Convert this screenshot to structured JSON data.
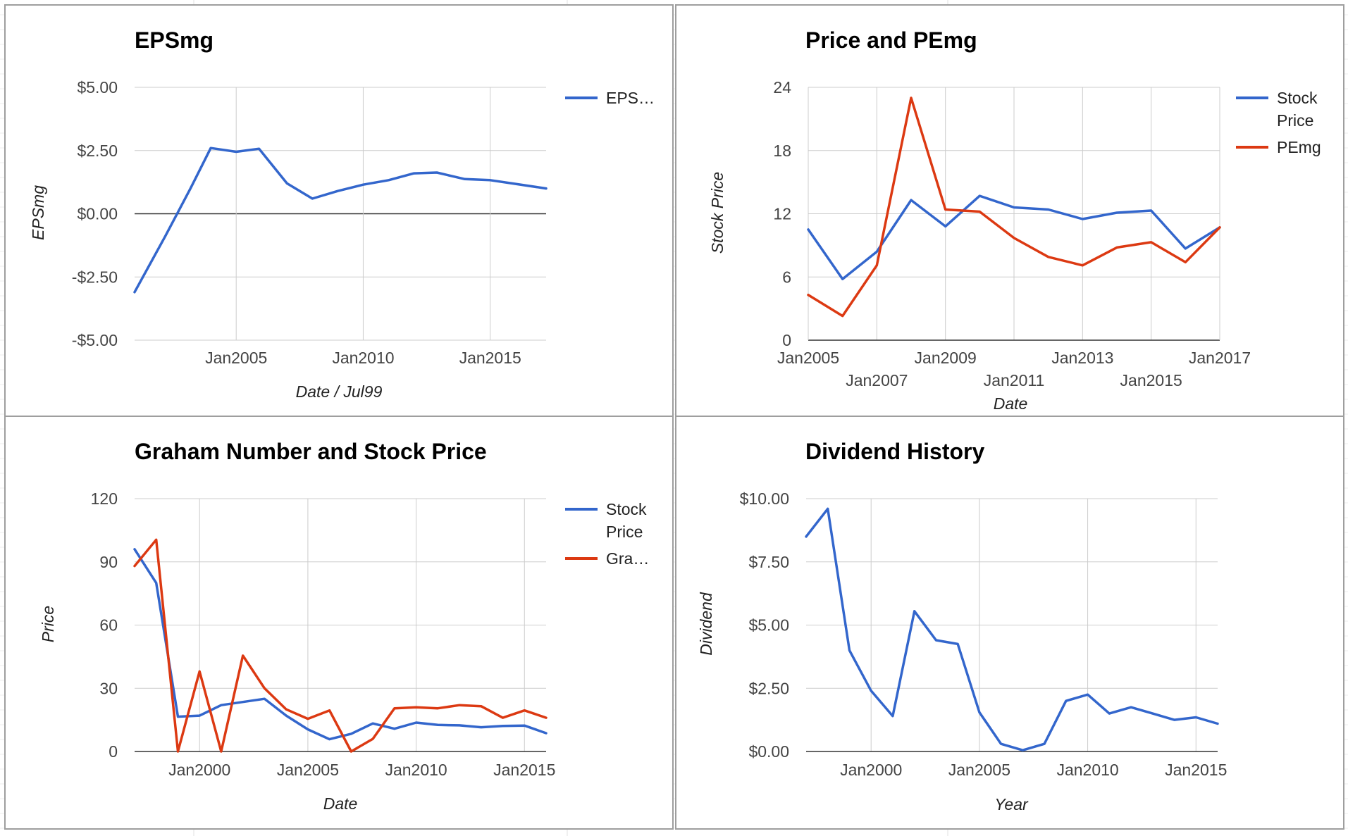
{
  "colors": {
    "blue": "#3366cc",
    "red": "#dc3912",
    "grid": "#cccccc",
    "zero": "#333333"
  },
  "chart_data": [
    {
      "type": "line",
      "title": "EPSmg",
      "xlabel": "Date / Jul99",
      "ylabel": "EPSmg",
      "x_ticks": [
        "Jan2005",
        "Jan2010",
        "Jan2015"
      ],
      "y_ticks": [
        "$5.00",
        "$2.50",
        "$0.00",
        "-$2.50",
        "-$5.00"
      ],
      "xlim": [
        2001.0,
        2017.2
      ],
      "ylim": [
        -5,
        5
      ],
      "grid": true,
      "legend_position": "right",
      "series": [
        {
          "name": "EPS…",
          "color": "#3366cc",
          "points": [
            [
              2001.0,
              -3.1
            ],
            [
              2002.2,
              -0.9
            ],
            [
              2003.2,
              1.0
            ],
            [
              2004.0,
              2.6
            ],
            [
              2005.0,
              2.45
            ],
            [
              2005.9,
              2.57
            ],
            [
              2007.0,
              1.2
            ],
            [
              2008.0,
              0.6
            ],
            [
              2009.0,
              0.9
            ],
            [
              2010.0,
              1.15
            ],
            [
              2011.0,
              1.33
            ],
            [
              2012.0,
              1.6
            ],
            [
              2012.9,
              1.63
            ],
            [
              2014.0,
              1.37
            ],
            [
              2015.0,
              1.33
            ],
            [
              2016.0,
              1.18
            ],
            [
              2017.2,
              1.0
            ]
          ]
        }
      ]
    },
    {
      "type": "line",
      "title": "Price and PEmg",
      "xlabel": "Date",
      "ylabel": "Stock Price",
      "x_ticks_row1": [
        "Jan2005",
        "Jan2009",
        "Jan2013",
        "Jan2017"
      ],
      "x_ticks_row2": [
        "Jan2007",
        "Jan2011",
        "Jan2015"
      ],
      "y_ticks": [
        "24",
        "18",
        "12",
        "6",
        "0"
      ],
      "xlim": [
        2005,
        2017
      ],
      "ylim": [
        0,
        24
      ],
      "grid": true,
      "legend_position": "right",
      "series": [
        {
          "name": "Stock Price",
          "color": "#3366cc",
          "points": [
            [
              2005,
              10.5
            ],
            [
              2006,
              5.8
            ],
            [
              2007,
              8.4
            ],
            [
              2008,
              13.3
            ],
            [
              2009,
              10.8
            ],
            [
              2010,
              13.7
            ],
            [
              2011,
              12.6
            ],
            [
              2012,
              12.4
            ],
            [
              2013,
              11.5
            ],
            [
              2014,
              12.1
            ],
            [
              2015,
              12.3
            ],
            [
              2016,
              8.7
            ],
            [
              2017,
              10.7
            ]
          ]
        },
        {
          "name": "PEmg",
          "color": "#dc3912",
          "points": [
            [
              2005,
              4.3
            ],
            [
              2006,
              2.3
            ],
            [
              2007,
              7.1
            ],
            [
              2008,
              23.0
            ],
            [
              2009,
              12.4
            ],
            [
              2010,
              12.2
            ],
            [
              2011,
              9.7
            ],
            [
              2012,
              7.9
            ],
            [
              2013,
              7.1
            ],
            [
              2014,
              8.8
            ],
            [
              2015,
              9.3
            ],
            [
              2016,
              7.4
            ],
            [
              2017,
              10.7
            ]
          ]
        }
      ]
    },
    {
      "type": "line",
      "title": "Graham Number and Stock Price",
      "xlabel": "Date",
      "ylabel": "Price",
      "x_ticks": [
        "Jan2000",
        "Jan2005",
        "Jan2010",
        "Jan2015"
      ],
      "y_ticks": [
        "120",
        "90",
        "60",
        "30",
        "0"
      ],
      "xlim": [
        1997,
        2016
      ],
      "ylim": [
        0,
        120
      ],
      "grid": true,
      "legend_position": "right",
      "series": [
        {
          "name": "Stock Price",
          "color": "#3366cc",
          "points": [
            [
              1997,
              96
            ],
            [
              1998,
              80
            ],
            [
              1999,
              16.5
            ],
            [
              2000,
              17
            ],
            [
              2001,
              22
            ],
            [
              2002,
              23.5
            ],
            [
              2003,
              25
            ],
            [
              2004,
              17
            ],
            [
              2005,
              10.5
            ],
            [
              2006,
              5.8
            ],
            [
              2007,
              8.4
            ],
            [
              2008,
              13.3
            ],
            [
              2009,
              10.8
            ],
            [
              2010,
              13.7
            ],
            [
              2011,
              12.6
            ],
            [
              2012,
              12.4
            ],
            [
              2013,
              11.5
            ],
            [
              2014,
              12.1
            ],
            [
              2015,
              12.3
            ],
            [
              2016,
              8.7
            ]
          ]
        },
        {
          "name": "Gra…",
          "color": "#dc3912",
          "points": [
            [
              1997,
              88
            ],
            [
              1998,
              100.5
            ],
            [
              1999,
              0
            ],
            [
              2000,
              38
            ],
            [
              2001,
              0
            ],
            [
              2002,
              45.5
            ],
            [
              2003,
              30
            ],
            [
              2004,
              20
            ],
            [
              2005,
              15.5
            ],
            [
              2006,
              19.5
            ],
            [
              2007,
              0
            ],
            [
              2008,
              6
            ],
            [
              2009,
              20.5
            ],
            [
              2010,
              21
            ],
            [
              2011,
              20.5
            ],
            [
              2012,
              22
            ],
            [
              2013,
              21.5
            ],
            [
              2014,
              16
            ],
            [
              2015,
              19.5
            ],
            [
              2016,
              16
            ]
          ]
        }
      ]
    },
    {
      "type": "line",
      "title": "Dividend History",
      "xlabel": "Year",
      "ylabel": "Dividend",
      "x_ticks": [
        "Jan2000",
        "Jan2005",
        "Jan2010",
        "Jan2015"
      ],
      "y_ticks": [
        "$10.00",
        "$7.50",
        "$5.00",
        "$2.50",
        "$0.00"
      ],
      "xlim": [
        1997,
        2016
      ],
      "ylim": [
        0,
        10
      ],
      "grid": true,
      "legend_position": "none",
      "series": [
        {
          "color": "#3366cc",
          "points": [
            [
              1997,
              8.5
            ],
            [
              1998,
              9.6
            ],
            [
              1999,
              4.0
            ],
            [
              2000,
              2.4
            ],
            [
              2001,
              1.4
            ],
            [
              2002,
              5.55
            ],
            [
              2003,
              4.4
            ],
            [
              2004,
              4.25
            ],
            [
              2005,
              1.55
            ],
            [
              2006,
              0.3
            ],
            [
              2007,
              0.05
            ],
            [
              2008,
              0.3
            ],
            [
              2009,
              2.0
            ],
            [
              2010,
              2.25
            ],
            [
              2011,
              1.5
            ],
            [
              2012,
              1.75
            ],
            [
              2013,
              1.5
            ],
            [
              2014,
              1.25
            ],
            [
              2015,
              1.35
            ],
            [
              2016,
              1.1
            ]
          ]
        }
      ]
    }
  ]
}
